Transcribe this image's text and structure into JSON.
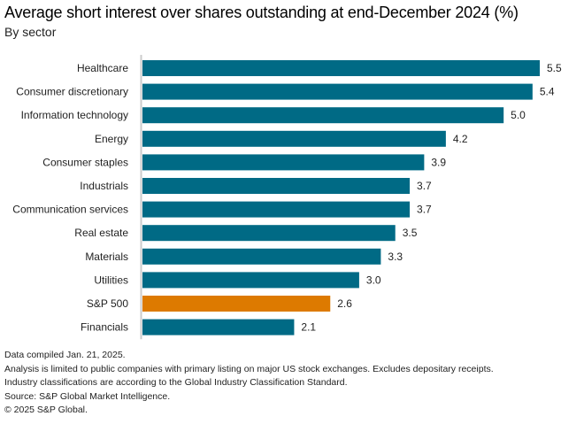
{
  "chart_data": {
    "type": "bar",
    "orientation": "horizontal",
    "title": "Average short interest over shares outstanding at end-December 2024 (%)",
    "subtitle": "By sector",
    "xlabel": "",
    "ylabel": "",
    "xlim": [
      0,
      5.5
    ],
    "grid": false,
    "categories": [
      "Healthcare",
      "Consumer discretionary",
      "Information technology",
      "Energy",
      "Consumer staples",
      "Industrials",
      "Communication services",
      "Real estate",
      "Materials",
      "Utilities",
      "S&P 500",
      "Financials"
    ],
    "values": [
      5.5,
      5.4,
      5.0,
      4.2,
      3.9,
      3.7,
      3.7,
      3.5,
      3.3,
      3.0,
      2.6,
      2.1
    ],
    "value_labels": [
      "5.5",
      "5.4",
      "5.0",
      "4.2",
      "3.9",
      "3.7",
      "3.7",
      "3.5",
      "3.3",
      "3.0",
      "2.6",
      "2.1"
    ],
    "highlight_category": "S&P 500",
    "colors": {
      "default": "#006a85",
      "highlight": "#dd7a00",
      "axis": "#cccccc"
    }
  },
  "footer": {
    "lines": [
      "Data compiled Jan. 21, 2025.",
      "Analysis is limited to public companies with primary listing on major US stock exchanges. Excludes depositary receipts.",
      "Industry classifications are according to the Global Industry Classification Standard.",
      "Source: S&P Global Market Intelligence.",
      "© 2025 S&P Global."
    ]
  }
}
